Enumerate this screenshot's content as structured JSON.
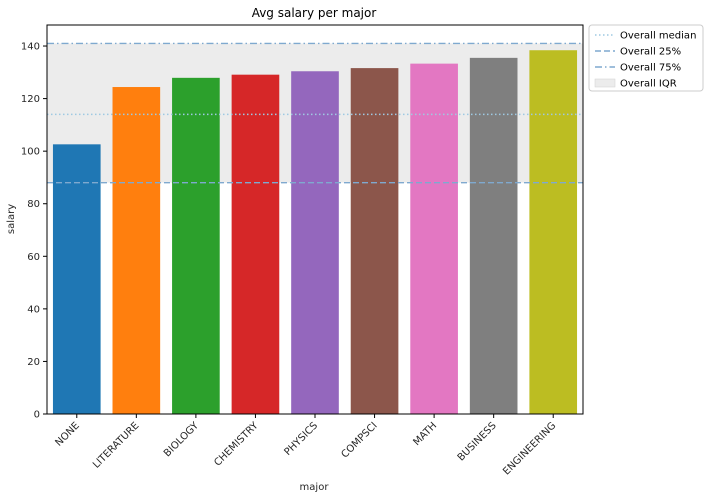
{
  "chart_data": {
    "type": "bar",
    "title": "Avg salary per major",
    "xlabel": "major",
    "ylabel": "salary",
    "categories": [
      "NONE",
      "LITERATURE",
      "BIOLOGY",
      "CHEMISTRY",
      "PHYSICS",
      "COMPSCI",
      "MATH",
      "BUSINESS",
      "ENGINEERING"
    ],
    "values": [
      102.6,
      124.4,
      127.9,
      129.1,
      130.4,
      131.6,
      133.3,
      135.5,
      138.4
    ],
    "colors": [
      "#1f77b4",
      "#ff7f0e",
      "#2ca02c",
      "#d62728",
      "#9467bd",
      "#8c564b",
      "#e377c2",
      "#7f7f7f",
      "#bcbd22"
    ],
    "ylim": [
      0,
      148
    ],
    "yticks": [
      0,
      20,
      40,
      60,
      80,
      100,
      120,
      140
    ],
    "grid": false,
    "legend_position": "outside-top-right",
    "reference_lines": [
      {
        "name": "Overall median",
        "value": 114,
        "style": "dotted",
        "color": "#9ec9e2"
      },
      {
        "name": "Overall 25%",
        "value": 88,
        "style": "dashed",
        "color": "#7fa9cf"
      },
      {
        "name": "Overall 75%",
        "value": 141,
        "style": "dashdot",
        "color": "#7fa9cf"
      }
    ],
    "band": {
      "name": "Overall IQR",
      "from": 88,
      "to": 141,
      "color": "#ececec"
    }
  }
}
